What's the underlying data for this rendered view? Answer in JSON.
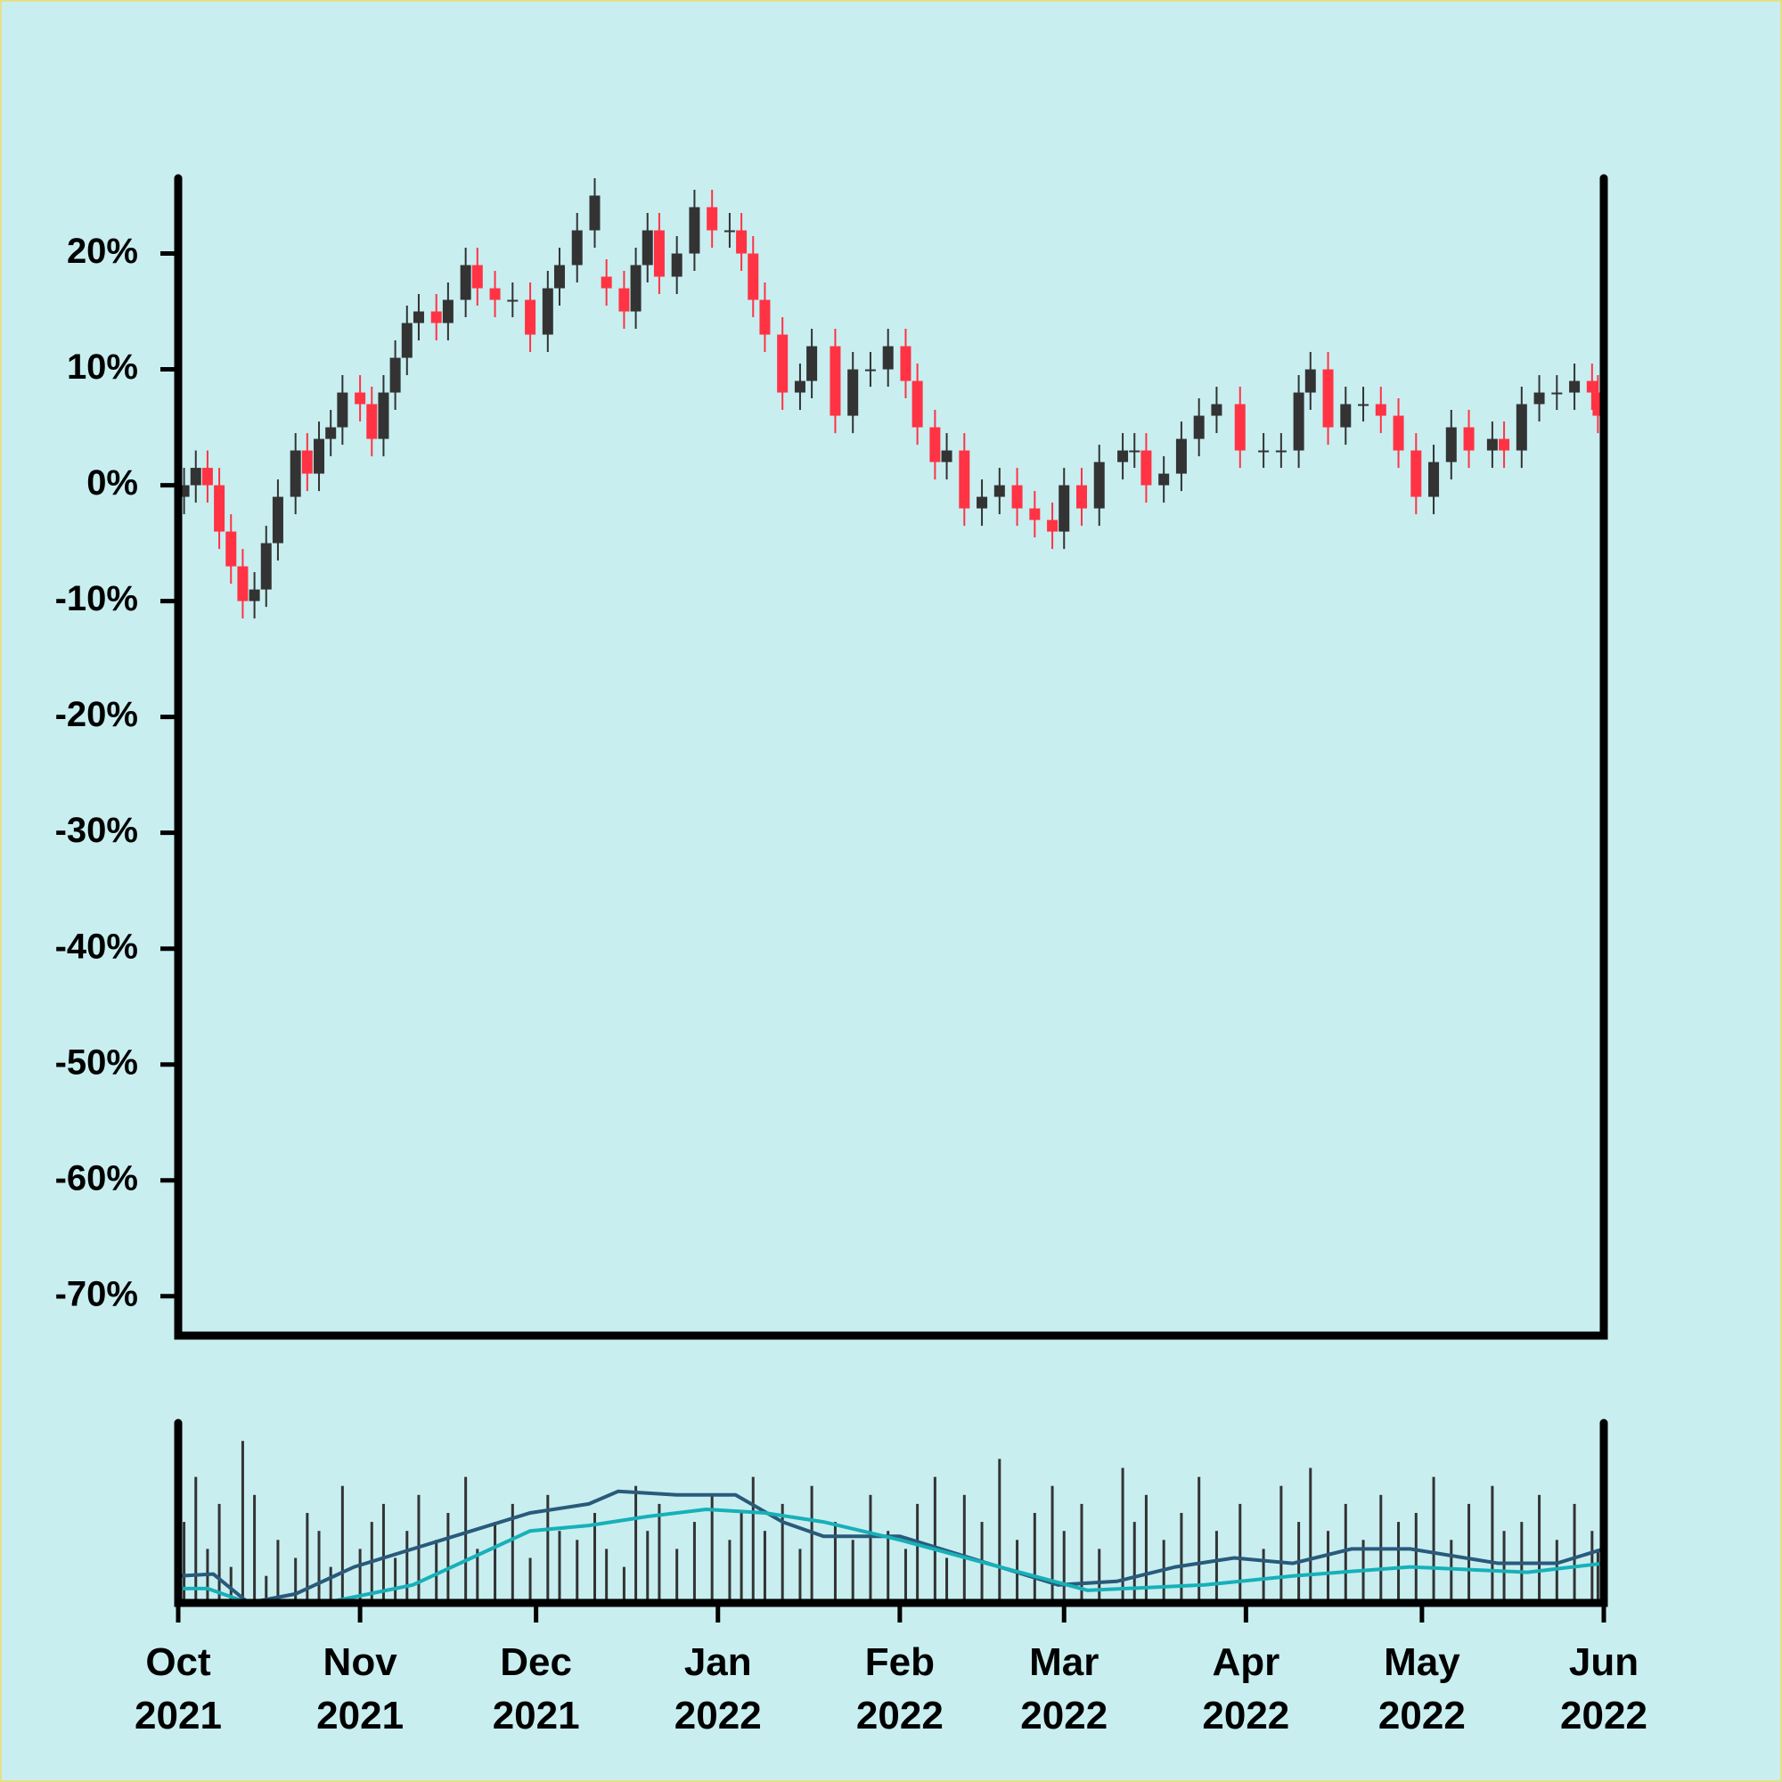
{
  "chart_data": [
    {
      "type": "candlestick",
      "xlim": [
        0,
        243
      ],
      "ylim": [
        -73.4,
        26.5
      ],
      "yticks": [
        {
          "value": -70,
          "label": "-70%"
        },
        {
          "value": -60,
          "label": "-60%"
        },
        {
          "value": -50,
          "label": "-50%"
        },
        {
          "value": -40,
          "label": "-40%"
        },
        {
          "value": -30,
          "label": "-30%"
        },
        {
          "value": -20,
          "label": "-20%"
        },
        {
          "value": -10,
          "label": "-10%"
        },
        {
          "value": 0,
          "label": "0%"
        },
        {
          "value": 10,
          "label": "10%"
        },
        {
          "value": 20,
          "label": "20%"
        }
      ],
      "up_color": "#333333",
      "down_color": "#ff3344",
      "x": [
        1,
        3,
        5,
        7,
        9,
        11,
        13,
        15,
        17,
        20,
        22,
        24,
        26,
        28,
        31,
        33,
        35,
        37,
        39,
        41,
        44,
        46,
        49,
        51,
        54,
        57,
        60,
        63,
        65,
        68,
        71,
        73,
        76,
        78,
        80,
        82,
        85,
        88,
        91,
        94,
        96,
        98,
        100,
        103,
        106,
        108,
        112,
        115,
        118,
        121,
        124,
        126,
        129,
        131,
        134,
        137,
        140,
        143,
        146,
        149,
        151,
        154,
        157,
        161,
        163,
        165,
        168,
        171,
        174,
        177,
        181,
        185,
        188,
        191,
        193,
        196,
        199,
        202,
        205,
        208,
        211,
        214,
        217,
        220,
        224,
        226,
        229,
        232,
        235,
        238,
        241,
        242
      ],
      "open": [
        -1,
        0,
        1.5,
        0,
        -4,
        -7,
        -10,
        -9,
        -5,
        -1,
        3,
        1,
        4,
        5,
        8,
        7,
        4,
        8,
        11,
        14,
        15,
        14,
        16,
        19,
        17,
        16,
        16,
        13,
        17,
        19,
        22,
        18,
        17,
        15,
        19,
        22,
        18,
        20,
        24,
        22,
        22,
        20,
        16,
        13,
        8,
        9,
        12,
        6,
        10,
        10,
        12,
        9,
        5,
        2,
        3,
        -2,
        -1,
        0,
        -2,
        -3,
        -4,
        0,
        -2,
        2,
        3,
        3,
        0,
        1,
        4,
        6,
        7,
        3,
        3,
        3,
        8,
        10,
        5,
        7,
        7,
        6,
        3,
        -1,
        2,
        5,
        3,
        4,
        3,
        7,
        8,
        8,
        9,
        8
      ],
      "high": [
        1.5,
        3,
        3,
        1.5,
        -2.5,
        -5.5,
        -7.5,
        -3.5,
        0.5,
        4.5,
        4.5,
        5.5,
        6.5,
        9.5,
        9.5,
        8.5,
        9.5,
        12.5,
        15.5,
        16.5,
        16.5,
        17.5,
        20.5,
        20.5,
        18.5,
        17.5,
        17.5,
        18.5,
        20.5,
        23.5,
        26.5,
        19.5,
        18.5,
        20.5,
        23.5,
        23.5,
        21.5,
        25.5,
        25.5,
        23.5,
        23.5,
        21.5,
        17.5,
        14.5,
        10.5,
        13.5,
        13.5,
        11.5,
        11.5,
        13.5,
        13.5,
        10.5,
        6.5,
        4.5,
        4.5,
        0.5,
        1.5,
        1.5,
        -0.5,
        -1.5,
        1.5,
        1.5,
        3.5,
        4.5,
        4.5,
        4.5,
        2.5,
        5.5,
        7.5,
        8.5,
        8.5,
        4.5,
        4.5,
        9.5,
        11.5,
        11.5,
        8.5,
        8.5,
        8.5,
        7.5,
        4.5,
        3.5,
        6.5,
        6.5,
        5.5,
        5.5,
        8.5,
        9.5,
        9.5,
        10.5,
        10.5,
        9.5
      ],
      "low": [
        -2.5,
        -1.5,
        -1.5,
        -5.5,
        -8.5,
        -11.5,
        -11.5,
        -10.5,
        -6.5,
        -2.5,
        -0.5,
        -0.5,
        2.5,
        3.5,
        5.5,
        2.5,
        2.5,
        6.5,
        9.5,
        12.5,
        12.5,
        12.5,
        14.5,
        15.5,
        14.5,
        14.5,
        11.5,
        11.5,
        15.5,
        17.5,
        20.5,
        15.5,
        13.5,
        13.5,
        17.5,
        16.5,
        16.5,
        18.5,
        20.5,
        20.5,
        18.5,
        14.5,
        11.5,
        6.5,
        6.5,
        7.5,
        4.5,
        4.5,
        8.5,
        8.5,
        7.5,
        3.5,
        0.5,
        0.5,
        -3.5,
        -3.5,
        -2.5,
        -3.5,
        -4.5,
        -5.5,
        -5.5,
        -3.5,
        -3.5,
        0.5,
        1.5,
        -1.5,
        -1.5,
        -0.5,
        2.5,
        4.5,
        1.5,
        1.5,
        1.5,
        1.5,
        6.5,
        3.5,
        3.5,
        5.5,
        4.5,
        1.5,
        -2.5,
        -2.5,
        0.5,
        1.5,
        1.5,
        1.5,
        1.5,
        5.5,
        6.5,
        6.5,
        6.5,
        4.5
      ],
      "close": [
        0,
        1.5,
        0,
        -4,
        -7,
        -10,
        -9,
        -5,
        -1,
        3,
        1,
        4,
        5,
        8,
        7,
        4,
        8,
        11,
        14,
        15,
        14,
        16,
        19,
        17,
        16,
        16,
        13,
        17,
        19,
        22,
        25,
        17,
        15,
        19,
        22,
        18,
        20,
        24,
        22,
        22,
        20,
        16,
        13,
        8,
        9,
        12,
        6,
        10,
        10,
        12,
        9,
        5,
        2,
        3,
        -2,
        -1,
        0,
        -2,
        -3,
        -4,
        0,
        -2,
        2,
        3,
        3,
        0,
        1,
        4,
        6,
        7,
        3,
        3,
        3,
        8,
        10,
        5,
        7,
        7,
        6,
        3,
        -1,
        2,
        5,
        3,
        4,
        3,
        7,
        8,
        8,
        9,
        8,
        6
      ]
    },
    {
      "type": "volume",
      "xlim": [
        0,
        243
      ],
      "ylim": [
        0,
        100
      ],
      "xticks": [
        {
          "value": 0,
          "label": "Oct\n2021"
        },
        {
          "value": 31,
          "label": "Nov\n2021"
        },
        {
          "value": 61,
          "label": "Dec\n2021"
        },
        {
          "value": 92,
          "label": "Jan\n2022"
        },
        {
          "value": 123,
          "label": "Feb\n2022"
        },
        {
          "value": 151,
          "label": "Mar\n2022"
        },
        {
          "value": 182,
          "label": "Apr\n2022"
        },
        {
          "value": 212,
          "label": "May\n2022"
        },
        {
          "value": 243,
          "label": "Jun\n2022"
        }
      ],
      "color": "#333333",
      "x": [
        1,
        3,
        5,
        7,
        9,
        11,
        13,
        15,
        17,
        20,
        22,
        24,
        26,
        28,
        31,
        33,
        35,
        37,
        39,
        41,
        44,
        46,
        49,
        51,
        54,
        57,
        60,
        63,
        65,
        68,
        71,
        73,
        76,
        78,
        80,
        82,
        85,
        88,
        91,
        94,
        96,
        98,
        100,
        103,
        106,
        108,
        112,
        115,
        118,
        121,
        124,
        126,
        129,
        131,
        134,
        137,
        140,
        143,
        146,
        149,
        151,
        154,
        157,
        161,
        163,
        165,
        168,
        171,
        174,
        177,
        181,
        185,
        188,
        191,
        193,
        196,
        199,
        202,
        205,
        208,
        211,
        214,
        217,
        220,
        224,
        226,
        229,
        232,
        235,
        238,
        241,
        242
      ],
      "values": [
        45,
        70,
        30,
        55,
        20,
        90,
        60,
        15,
        35,
        25,
        50,
        40,
        20,
        65,
        30,
        45,
        55,
        25,
        40,
        60,
        35,
        50,
        70,
        30,
        45,
        55,
        25,
        60,
        40,
        35,
        50,
        30,
        20,
        65,
        40,
        55,
        30,
        45,
        60,
        35,
        50,
        70,
        40,
        55,
        30,
        65,
        45,
        35,
        60,
        40,
        30,
        55,
        70,
        25,
        60,
        45,
        80,
        35,
        50,
        65,
        40,
        55,
        30,
        75,
        45,
        60,
        35,
        50,
        70,
        40,
        55,
        30,
        65,
        45,
        75,
        40,
        55,
        35,
        60,
        45,
        50,
        70,
        35,
        55,
        65,
        40,
        45,
        60,
        35,
        55,
        40,
        30
      ],
      "series": [
        {
          "color": "#2a5a7a",
          "x": [
            0,
            6,
            12,
            20,
            30,
            40,
            50,
            60,
            70,
            75,
            85,
            95,
            103,
            110,
            123,
            135,
            150,
            160,
            170,
            180,
            190,
            200,
            210,
            225,
            235,
            243
          ],
          "values": [
            15,
            16,
            0,
            5,
            20,
            30,
            40,
            50,
            55,
            62,
            60,
            60,
            45,
            37,
            37,
            25,
            10,
            12,
            20,
            25,
            22,
            30,
            30,
            22,
            22,
            30
          ]
        },
        {
          "color": "#17b0b8",
          "x": [
            0,
            5,
            12,
            25,
            40,
            50,
            60,
            70,
            80,
            90,
            100,
            110,
            123,
            140,
            155,
            175,
            190,
            210,
            230,
            243
          ],
          "values": [
            8,
            8,
            0,
            0,
            10,
            25,
            40,
            43,
            48,
            52,
            50,
            45,
            35,
            20,
            7,
            10,
            15,
            20,
            17,
            22
          ]
        }
      ]
    }
  ]
}
